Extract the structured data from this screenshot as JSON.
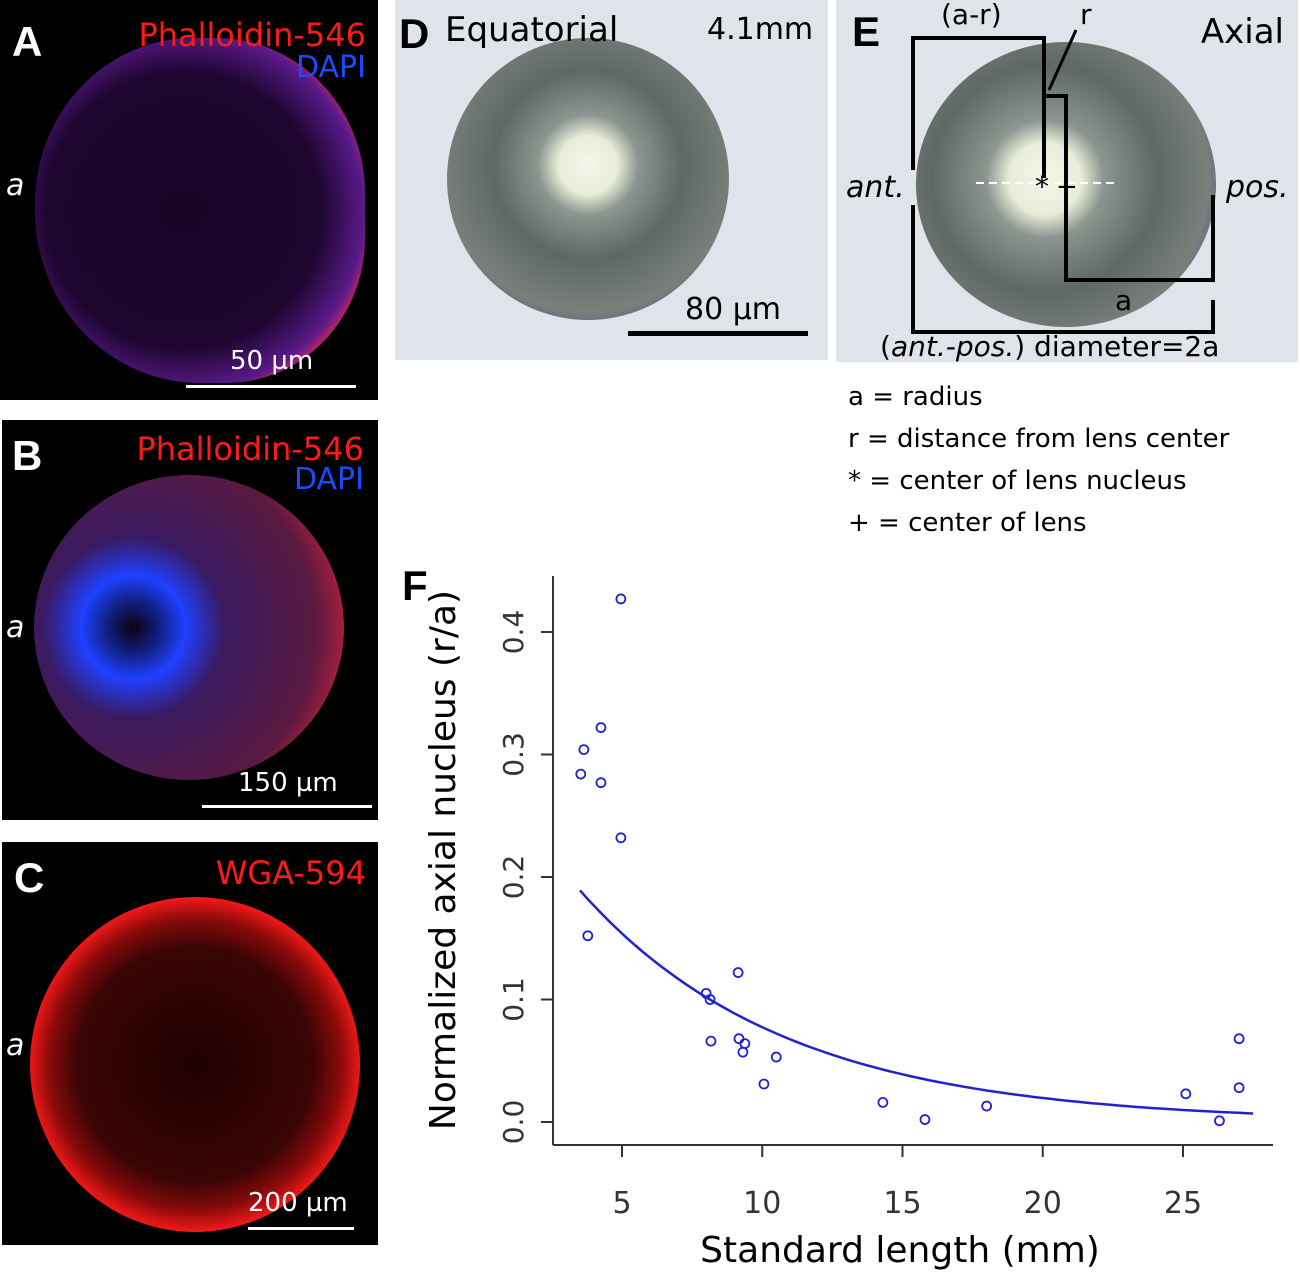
{
  "panel_a": {
    "label": "A",
    "stain1": "Phalloidin-546",
    "stain2": "DAPI",
    "axis_label": "a",
    "scale": "50 µm"
  },
  "panel_b": {
    "label": "B",
    "stain1": "Phalloidin-546",
    "stain2": "DAPI",
    "axis_label": "a",
    "scale": "150 µm"
  },
  "panel_c": {
    "label": "C",
    "stain1": "WGA-594",
    "axis_label": "a",
    "scale": "200 µm"
  },
  "panel_d": {
    "label": "D",
    "title": "Equatorial",
    "size": "4.1mm",
    "scale": "80 µm"
  },
  "panel_e": {
    "label": "E",
    "title": "Axial",
    "a_minus_r": "(a-r)",
    "r": "r",
    "ant": "ant.",
    "pos": "pos.",
    "star": "*",
    "plus": "+",
    "a": "a",
    "diameter_prefix": "(",
    "diameter_italic": "ant.-pos.",
    "diameter_suffix": ") diameter=2a",
    "legend": [
      "a = radius",
      "r = distance from lens center",
      "* = center of lens nucleus",
      "+ = center of lens"
    ]
  },
  "panel_f": {
    "label": "F"
  },
  "colors": {
    "red": "#ff1a1a",
    "blue": "#1a4cff",
    "series": "#2222cc"
  },
  "chart_data": {
    "type": "scatter",
    "xlabel": "Standard length (mm)",
    "ylabel": "Normalized axial nucleus (r/a)",
    "xlim": [
      3,
      27.8
    ],
    "ylim": [
      -0.02,
      0.45
    ],
    "xticks": [
      5,
      10,
      15,
      20,
      25
    ],
    "yticks": [
      0.0,
      0.1,
      0.2,
      0.3,
      0.4
    ],
    "xtick_labels": [
      "5",
      "10",
      "15",
      "20",
      "25"
    ],
    "ytick_labels": [
      "0.0",
      "0.1",
      "0.2",
      "0.3",
      "0.4"
    ],
    "grid": false,
    "points": [
      [
        3.53,
        0.284
      ],
      [
        3.64,
        0.304
      ],
      [
        4.25,
        0.322
      ],
      [
        4.25,
        0.277
      ],
      [
        4.96,
        0.427
      ],
      [
        4.96,
        0.232
      ],
      [
        3.78,
        0.152
      ],
      [
        8.0,
        0.105
      ],
      [
        8.14,
        0.1
      ],
      [
        8.17,
        0.066
      ],
      [
        9.14,
        0.122
      ],
      [
        9.17,
        0.068
      ],
      [
        9.38,
        0.064
      ],
      [
        9.31,
        0.057
      ],
      [
        10.5,
        0.053
      ],
      [
        10.06,
        0.031
      ],
      [
        14.3,
        0.016
      ],
      [
        15.8,
        0.002
      ],
      [
        18.0,
        0.013
      ],
      [
        25.1,
        0.023
      ],
      [
        27.0,
        0.068
      ],
      [
        27.0,
        0.028
      ],
      [
        26.3,
        0.001
      ]
    ],
    "fit": {
      "type": "exponential decay",
      "x_range": [
        3.5,
        27.5
      ]
    }
  }
}
